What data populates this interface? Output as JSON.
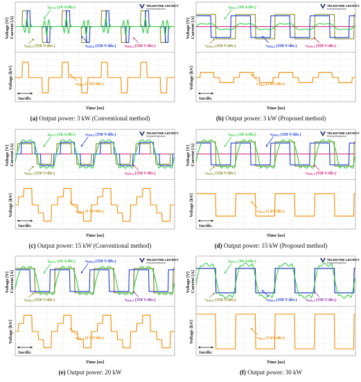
{
  "chart_data": [
    {
      "id": "a",
      "type": "line",
      "caption_bold": "(a)",
      "caption_text": " Output power: 3 kW (Conventional method)",
      "ylabel_top_1": "Voltage [V]",
      "ylabel_top_2": "Current [A]",
      "ylabel_bottom": "Voltage [kV]",
      "xlabel": "Time [us]",
      "time_div": "1us/div.",
      "brand": "TELEDYNE LECROY",
      "brand_sub": "Everywhereyoulook",
      "series": [
        {
          "name": "iINV.1 (10 A/div.)",
          "color": "#2ecc40",
          "kind": "current_ringing"
        },
        {
          "name": "vINV.1 (350 V/div.)",
          "color": "#8b8b2a",
          "kind": "narrow_pulse"
        },
        {
          "name": "vINV.2 (350 V/div.)",
          "color": "#1a3bd6",
          "kind": "narrow_pulse_shift"
        },
        {
          "name": "vINV.3 (350 V/div.)",
          "color": "#d8197a",
          "kind": "flat"
        },
        {
          "name": "vTR.S (1 kV/div.)",
          "color": "#f08c00",
          "kind": "tr_pulse_narrow"
        }
      ],
      "labels_text": {
        "i1": "i",
        "i1sub": "INV.1",
        "i1rest": " (10 A/div.)",
        "v1": "v",
        "v1sub": "INV.1",
        "v1rest": " (350 V/div.)",
        "v2": "v",
        "v2sub": "INV.2",
        "v2rest": " (350 V/div.)",
        "v3": "v",
        "v3sub": "INV.3",
        "v3rest": " (350 V/div.)",
        "vt": "v",
        "vtsub": "TR.S",
        "vtrest": " (1 kV/div.)"
      }
    },
    {
      "id": "b",
      "type": "line",
      "caption_bold": "(b)",
      "caption_text": " Output power: 3 kW (Proposed method)",
      "ylabel_top_1": "Voltage [V]",
      "ylabel_top_2": "Current [A]",
      "ylabel_bottom": "Voltage [kV]",
      "xlabel": "Time [us]",
      "time_div": "1us/div.",
      "brand": "TELEDYNE LECROY",
      "brand_sub": "Everywhereyoulook",
      "series": [
        {
          "name": "iINV.1 (10 A/div.)",
          "color": "#2ecc40",
          "kind": "current_small"
        },
        {
          "name": "vINV.1 (350 V/div.)",
          "color": "#8b8b2a",
          "kind": "square_full"
        },
        {
          "name": "vINV.2 (350 V/div.)",
          "color": "#1a3bd6",
          "kind": "square_full_shift"
        },
        {
          "name": "vINV.3 (350 V/div.)",
          "color": "#d8197a",
          "kind": "flat"
        },
        {
          "name": "vTR.S (1 kV/div.)",
          "color": "#f08c00",
          "kind": "tr_step_small"
        }
      ],
      "labels_text": {
        "i1": "i",
        "i1sub": "INV.1",
        "i1rest": " (10 A/div.)",
        "v1": "v",
        "v1sub": "INV.1",
        "v1rest": " (350 V/div.)",
        "v2": "v",
        "v2sub": "INV.2",
        "v2rest": " (350 V/div.)",
        "v3": "v",
        "v3sub": "INV.3",
        "v3rest": " (350 V/div.)",
        "vt": "v",
        "vtsub": "TR.S",
        "vtrest": " (1 kV/div.)"
      }
    },
    {
      "id": "c",
      "type": "line",
      "caption_bold": "(c)",
      "caption_text": " Output power: 15 kW (Conventional method)",
      "ylabel_top_1": "Voltage [V]",
      "ylabel_top_2": "Current [A]",
      "ylabel_bottom": "Voltage [kV]",
      "xlabel": "Time [us]",
      "time_div": "1us/div.",
      "brand": "TELEDYNE LECROY",
      "brand_sub": "Everywhereyoulook",
      "series": [
        {
          "name": "iINV.1 (10 A/div.)",
          "color": "#2ecc40",
          "kind": "current_trap"
        },
        {
          "name": "vINV.1 (350 V/div.)",
          "color": "#8b8b2a",
          "kind": "wide_pulse"
        },
        {
          "name": "vINV.2 (350 V/div.)",
          "color": "#1a3bd6",
          "kind": "wide_pulse_shift"
        },
        {
          "name": "vINV.3 (350 V/div.)",
          "color": "#d8197a",
          "kind": "flat"
        },
        {
          "name": "vTR.S (1 kV/div.)",
          "color": "#f08c00",
          "kind": "tr_pulse_wide"
        }
      ],
      "labels_text": {
        "i1": "i",
        "i1sub": "INV.1",
        "i1rest": " (10 A/div.)",
        "v1": "v",
        "v1sub": "INV.1",
        "v1rest": " (350 V/div.)",
        "v2": "v",
        "v2sub": "INV.2",
        "v2rest": " (350 V/div.)",
        "v3": "v",
        "v3sub": "INV.3",
        "v3rest": " (350 V/div.)",
        "vt": "v",
        "vtsub": "TR.S",
        "vtrest": " (1 kV/div.)"
      }
    },
    {
      "id": "d",
      "type": "line",
      "caption_bold": "(d)",
      "caption_text": " Output power: 15 kW (Proposed method)",
      "ylabel_top_1": "Voltage [V]",
      "ylabel_top_2": "Current [A]",
      "ylabel_bottom": "Voltage [kV]",
      "xlabel": "Time [us]",
      "time_div": "1us/div.",
      "brand": "TELEDYNE LECROY",
      "brand_sub": "Everywhereyoulook",
      "series": [
        {
          "name": "iINV.1 (10 A/div.)",
          "color": "#2ecc40",
          "kind": "current_trap"
        },
        {
          "name": "vINV.1 (350 V/div.)",
          "color": "#8b8b2a",
          "kind": "square_full"
        },
        {
          "name": "vINV.2 (350 V/div.)",
          "color": "#1a3bd6",
          "kind": "square_full_shift"
        },
        {
          "name": "vINV.3 (350 V/div.)",
          "color": "#d8197a",
          "kind": "flat"
        },
        {
          "name": "vTR.S (1 kV/div.)",
          "color": "#f08c00",
          "kind": "tr_square"
        }
      ],
      "labels_text": {
        "i1": "i",
        "i1sub": "INV.1",
        "i1rest": " (10 A/div.)",
        "v1": "v",
        "v1sub": "INV.1",
        "v1rest": " (350 V/div.)",
        "v2": "v",
        "v2sub": "INV.2",
        "v2rest": " (350 V/div.)",
        "v3": "v",
        "v3sub": "INV.3",
        "v3rest": " (350 V/div.)",
        "vt": "v",
        "vtsub": "TR.S",
        "vtrest": " (1 kV/div.)"
      }
    },
    {
      "id": "e",
      "type": "line",
      "caption_bold": "(e)",
      "caption_text": " Output power: 20 kW",
      "ylabel_top_1": "Voltage [V]",
      "ylabel_top_2": "Current [A]",
      "ylabel_bottom": "Voltage [kV]",
      "xlabel": "Time [us]",
      "time_div": "1us/div.",
      "brand": "TELEDYNE LECROY",
      "brand_sub": "Everywhereyoulook",
      "series": [
        {
          "name": "iINV.1 (10 A/div.)",
          "color": "#2ecc40",
          "kind": "current_trap"
        },
        {
          "name": "vINV.1 (350 V/div.)",
          "color": "#8b8b2a",
          "kind": "square_full"
        },
        {
          "name": "vINV.2 (350 V/div.)",
          "color": "#1a3bd6",
          "kind": "square_full_shift"
        },
        {
          "name": "vINV.3 (350 V/div.)",
          "color": "#8b2aa8",
          "kind": "square_full"
        },
        {
          "name": "vTR.S (1 kV/div.)",
          "color": "#f08c00",
          "kind": "tr_pulse_wide"
        }
      ],
      "labels_text": {
        "i1": "i",
        "i1sub": "INV.1",
        "i1rest": " (10 A/div.)",
        "v1": "v",
        "v1sub": "INV.1",
        "v1rest": " (350 V/div.)",
        "v2": "v",
        "v2sub": "INV.2",
        "v2rest": " (350 V/div.)",
        "v3": "v",
        "v3sub": "INV.3",
        "v3rest": " (350 V/div.)",
        "vt": "v",
        "vtsub": "TR.S",
        "vtrest": " (1 kV/div.)"
      }
    },
    {
      "id": "f",
      "type": "line",
      "caption_bold": "(f)",
      "caption_text": " Output power: 30 kW",
      "ylabel_top_1": "Voltage [V]",
      "ylabel_top_2": "Current [A]",
      "ylabel_bottom": "Voltage [kV]",
      "xlabel": "Time [us]",
      "time_div": "1us/div.",
      "brand": "TELEDYNE LECROY",
      "brand_sub": "Everywhereyoulook",
      "series": [
        {
          "name": "iINV.1 (10 A/div.)",
          "color": "#2ecc40",
          "kind": "current_big"
        },
        {
          "name": "vINV.1 (350 V/div.)",
          "color": "#8b8b2a",
          "kind": "square_full"
        },
        {
          "name": "vINV.2 (350 V/div.)",
          "color": "#1a3bd6",
          "kind": "square_full"
        },
        {
          "name": "vINV.3 (350 V/div.)",
          "color": "#8b2aa8",
          "kind": "square_full"
        },
        {
          "name": "vTR.S (1 kV/div.)",
          "color": "#f08c00",
          "kind": "tr_square_big"
        }
      ],
      "labels_text": {
        "i1": "i",
        "i1sub": "INV.1",
        "i1rest": " (10 A/div.)",
        "v1": "v",
        "v1sub": "INV.1",
        "v1rest": " (350 V/div.)",
        "v2": "v",
        "v2sub": "INV.2",
        "v2rest": " (350 V/div.)",
        "v3": "v",
        "v3sub": "INV.3",
        "v3rest": " (350 V/div.)",
        "vt": "v",
        "vtsub": "TR.S",
        "vtrest": " (1 kV/div.)"
      }
    }
  ]
}
